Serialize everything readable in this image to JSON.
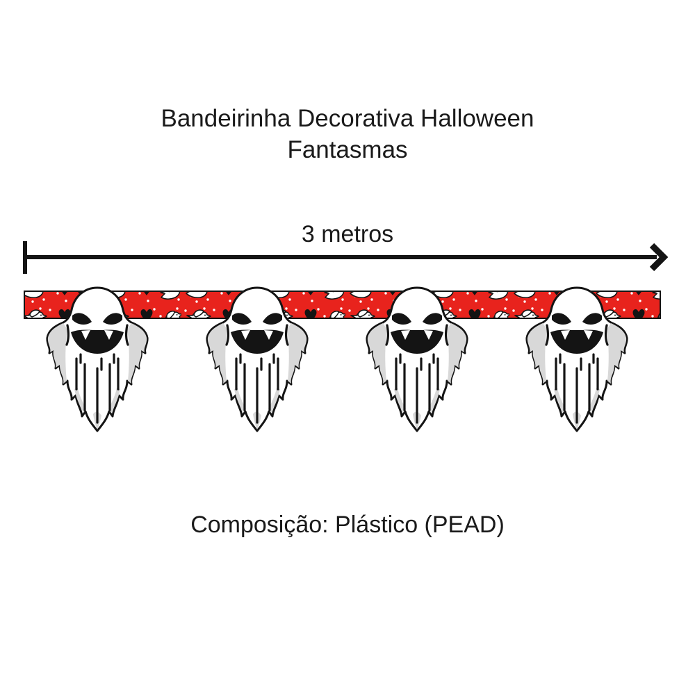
{
  "title": {
    "line1": "Bandeirinha Decorativa Halloween",
    "line2": "Fantasmas"
  },
  "measurement": {
    "label": "3 metros"
  },
  "banner": {
    "ghost_count": 4,
    "strip_color": "#e8231d",
    "outline_color": "#141414",
    "shade_color": "#d8d8d8",
    "pattern_icons": [
      "dove-icon",
      "bat-icon",
      "dot-pattern"
    ]
  },
  "footer": {
    "composition": "Composição: Plástico (PEAD)"
  }
}
